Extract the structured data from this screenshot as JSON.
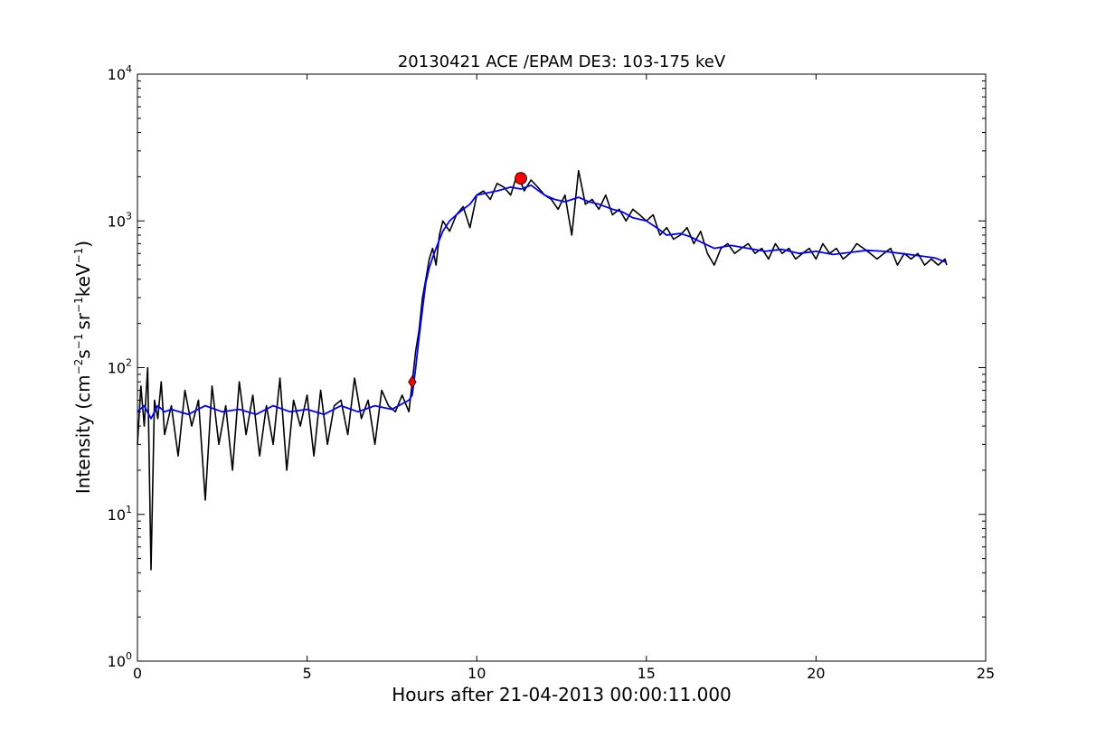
{
  "chart_data": {
    "type": "line",
    "title": "20130421 ACE /EPAM DE3: 103-175 keV",
    "xlabel": "Hours after 21-04-2013 00:00:11.000",
    "ylabel": {
      "main": "Intensity (cm",
      "exp1": "−2",
      "s": "s",
      "exp2": "−1",
      "sr": "sr",
      "exp3": "−1",
      "kev": "keV",
      "exp4": "−1",
      "close": ")"
    },
    "xlim": [
      0,
      25
    ],
    "ylim": [
      1,
      10000
    ],
    "yscale": "log",
    "grid": false,
    "x_ticks": [
      {
        "value": 0,
        "label": "0"
      },
      {
        "value": 5,
        "label": "5"
      },
      {
        "value": 10,
        "label": "10"
      },
      {
        "value": 15,
        "label": "15"
      },
      {
        "value": 20,
        "label": "20"
      },
      {
        "value": 25,
        "label": "25"
      }
    ],
    "y_ticks": [
      {
        "value": 1,
        "base": "10",
        "exp": "0"
      },
      {
        "value": 10,
        "base": "10",
        "exp": "1"
      },
      {
        "value": 100,
        "base": "10",
        "exp": "2"
      },
      {
        "value": 1000,
        "base": "10",
        "exp": "3"
      },
      {
        "value": 10000,
        "base": "10",
        "exp": "4"
      }
    ],
    "series": [
      {
        "color": "#000000",
        "x": [
          0.0,
          0.1,
          0.2,
          0.3,
          0.4,
          0.5,
          0.6,
          0.7,
          0.8,
          1.0,
          1.2,
          1.4,
          1.6,
          1.8,
          2.0,
          2.2,
          2.4,
          2.6,
          2.8,
          3.0,
          3.2,
          3.4,
          3.6,
          3.8,
          4.0,
          4.2,
          4.4,
          4.6,
          4.8,
          5.0,
          5.2,
          5.4,
          5.6,
          5.8,
          6.0,
          6.2,
          6.4,
          6.6,
          6.8,
          7.0,
          7.2,
          7.4,
          7.6,
          7.8,
          8.0,
          8.1,
          8.2,
          8.3,
          8.4,
          8.5,
          8.6,
          8.7,
          8.8,
          8.9,
          9.0,
          9.2,
          9.4,
          9.6,
          9.8,
          10.0,
          10.2,
          10.4,
          10.6,
          10.8,
          11.0,
          11.2,
          11.4,
          11.6,
          11.8,
          12.0,
          12.2,
          12.4,
          12.6,
          12.8,
          13.0,
          13.2,
          13.4,
          13.6,
          13.8,
          14.0,
          14.2,
          14.4,
          14.6,
          14.8,
          15.0,
          15.2,
          15.4,
          15.6,
          15.8,
          16.0,
          16.2,
          16.4,
          16.6,
          16.8,
          17.0,
          17.2,
          17.4,
          17.6,
          17.8,
          18.0,
          18.2,
          18.4,
          18.6,
          18.8,
          19.0,
          19.2,
          19.4,
          19.6,
          19.8,
          20.0,
          20.2,
          20.4,
          20.6,
          20.8,
          21.0,
          21.2,
          21.4,
          21.6,
          21.8,
          22.0,
          22.2,
          22.4,
          22.6,
          22.8,
          23.0,
          23.2,
          23.4,
          23.6,
          23.8,
          23.85
        ],
        "y": [
          30,
          75,
          40,
          100,
          4.2,
          60,
          45,
          80,
          35,
          55,
          25,
          70,
          40,
          60,
          12.5,
          75,
          30,
          55,
          20,
          80,
          35,
          65,
          25,
          55,
          30,
          85,
          20,
          60,
          40,
          65,
          25,
          70,
          30,
          55,
          60,
          35,
          85,
          45,
          60,
          30,
          70,
          55,
          50,
          65,
          50,
          80,
          130,
          180,
          300,
          400,
          550,
          650,
          500,
          800,
          1000,
          850,
          1100,
          1250,
          900,
          1500,
          1600,
          1400,
          1800,
          1700,
          1500,
          2100,
          1600,
          1900,
          1700,
          1500,
          1400,
          1200,
          1500,
          800,
          2200,
          1300,
          1400,
          1200,
          1500,
          1100,
          1200,
          1000,
          1200,
          1100,
          1000,
          1100,
          800,
          900,
          750,
          800,
          900,
          700,
          850,
          600,
          500,
          650,
          700,
          600,
          650,
          700,
          600,
          650,
          550,
          700,
          600,
          650,
          550,
          600,
          650,
          550,
          700,
          600,
          650,
          550,
          600,
          700,
          650,
          600,
          550,
          600,
          650,
          500,
          600,
          550,
          600,
          500,
          550,
          500,
          550,
          500
        ]
      },
      {
        "color": "#0000ff",
        "x": [
          0.0,
          0.2,
          0.4,
          0.6,
          0.8,
          1.0,
          1.5,
          2.0,
          2.5,
          3.0,
          3.5,
          4.0,
          4.5,
          5.0,
          5.5,
          6.0,
          6.5,
          7.0,
          7.5,
          8.0,
          8.1,
          8.2,
          8.3,
          8.4,
          8.5,
          8.6,
          8.7,
          8.8,
          9.0,
          9.2,
          9.4,
          9.6,
          9.8,
          10.0,
          10.3,
          10.6,
          11.0,
          11.3,
          11.6,
          12.0,
          12.3,
          12.6,
          13.0,
          13.3,
          13.6,
          14.0,
          14.3,
          14.6,
          15.0,
          15.3,
          15.6,
          16.0,
          16.3,
          16.6,
          17.0,
          17.5,
          18.0,
          18.5,
          19.0,
          19.5,
          20.0,
          20.5,
          21.0,
          21.5,
          22.0,
          22.5,
          23.0,
          23.5,
          23.85
        ],
        "y": [
          50,
          55,
          45,
          55,
          50,
          52,
          48,
          55,
          50,
          52,
          48,
          55,
          50,
          52,
          48,
          55,
          50,
          55,
          52,
          60,
          65,
          100,
          160,
          250,
          380,
          480,
          560,
          650,
          850,
          1000,
          1100,
          1200,
          1300,
          1500,
          1550,
          1600,
          1700,
          1650,
          1750,
          1500,
          1400,
          1350,
          1450,
          1350,
          1300,
          1200,
          1150,
          1050,
          1000,
          900,
          800,
          820,
          780,
          720,
          650,
          680,
          650,
          620,
          640,
          600,
          620,
          590,
          610,
          630,
          620,
          600,
          580,
          560,
          520
        ]
      }
    ],
    "markers": [
      {
        "shape": "diamond",
        "color": "#ff0000",
        "x": 8.1,
        "y": 80
      },
      {
        "shape": "circle",
        "color": "#ff0000",
        "x": 11.3,
        "y": 1950
      }
    ]
  }
}
